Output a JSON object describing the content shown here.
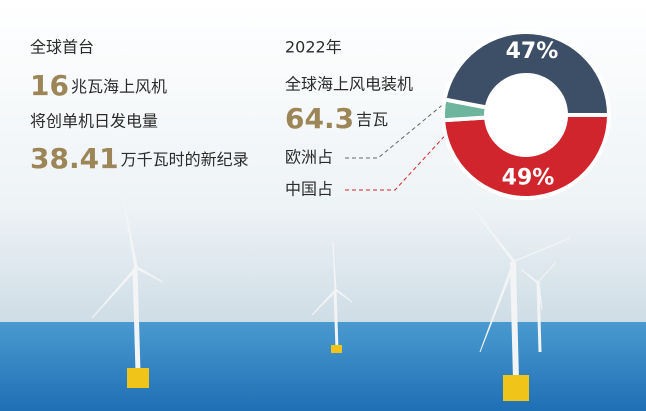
{
  "intro": {
    "line1": "全球首台",
    "capacity": "16",
    "capacity_text": "兆瓦海上风机",
    "line3": "将创单机日发电量",
    "record": "38.41",
    "record_text": "万千瓦时的新纪录"
  },
  "chart_data": {
    "type": "donut",
    "subtitle": "2022年",
    "title": "全球海上风电装机",
    "total": "64.3",
    "total_unit": "吉瓦",
    "categories": [
      "欧洲占",
      "中国占",
      null
    ],
    "values": [
      47,
      49,
      4
    ],
    "value_labels": [
      "47%",
      "49%",
      null
    ],
    "colors": [
      "#3d4f66",
      "#d0252c",
      "#6db59c"
    ]
  }
}
